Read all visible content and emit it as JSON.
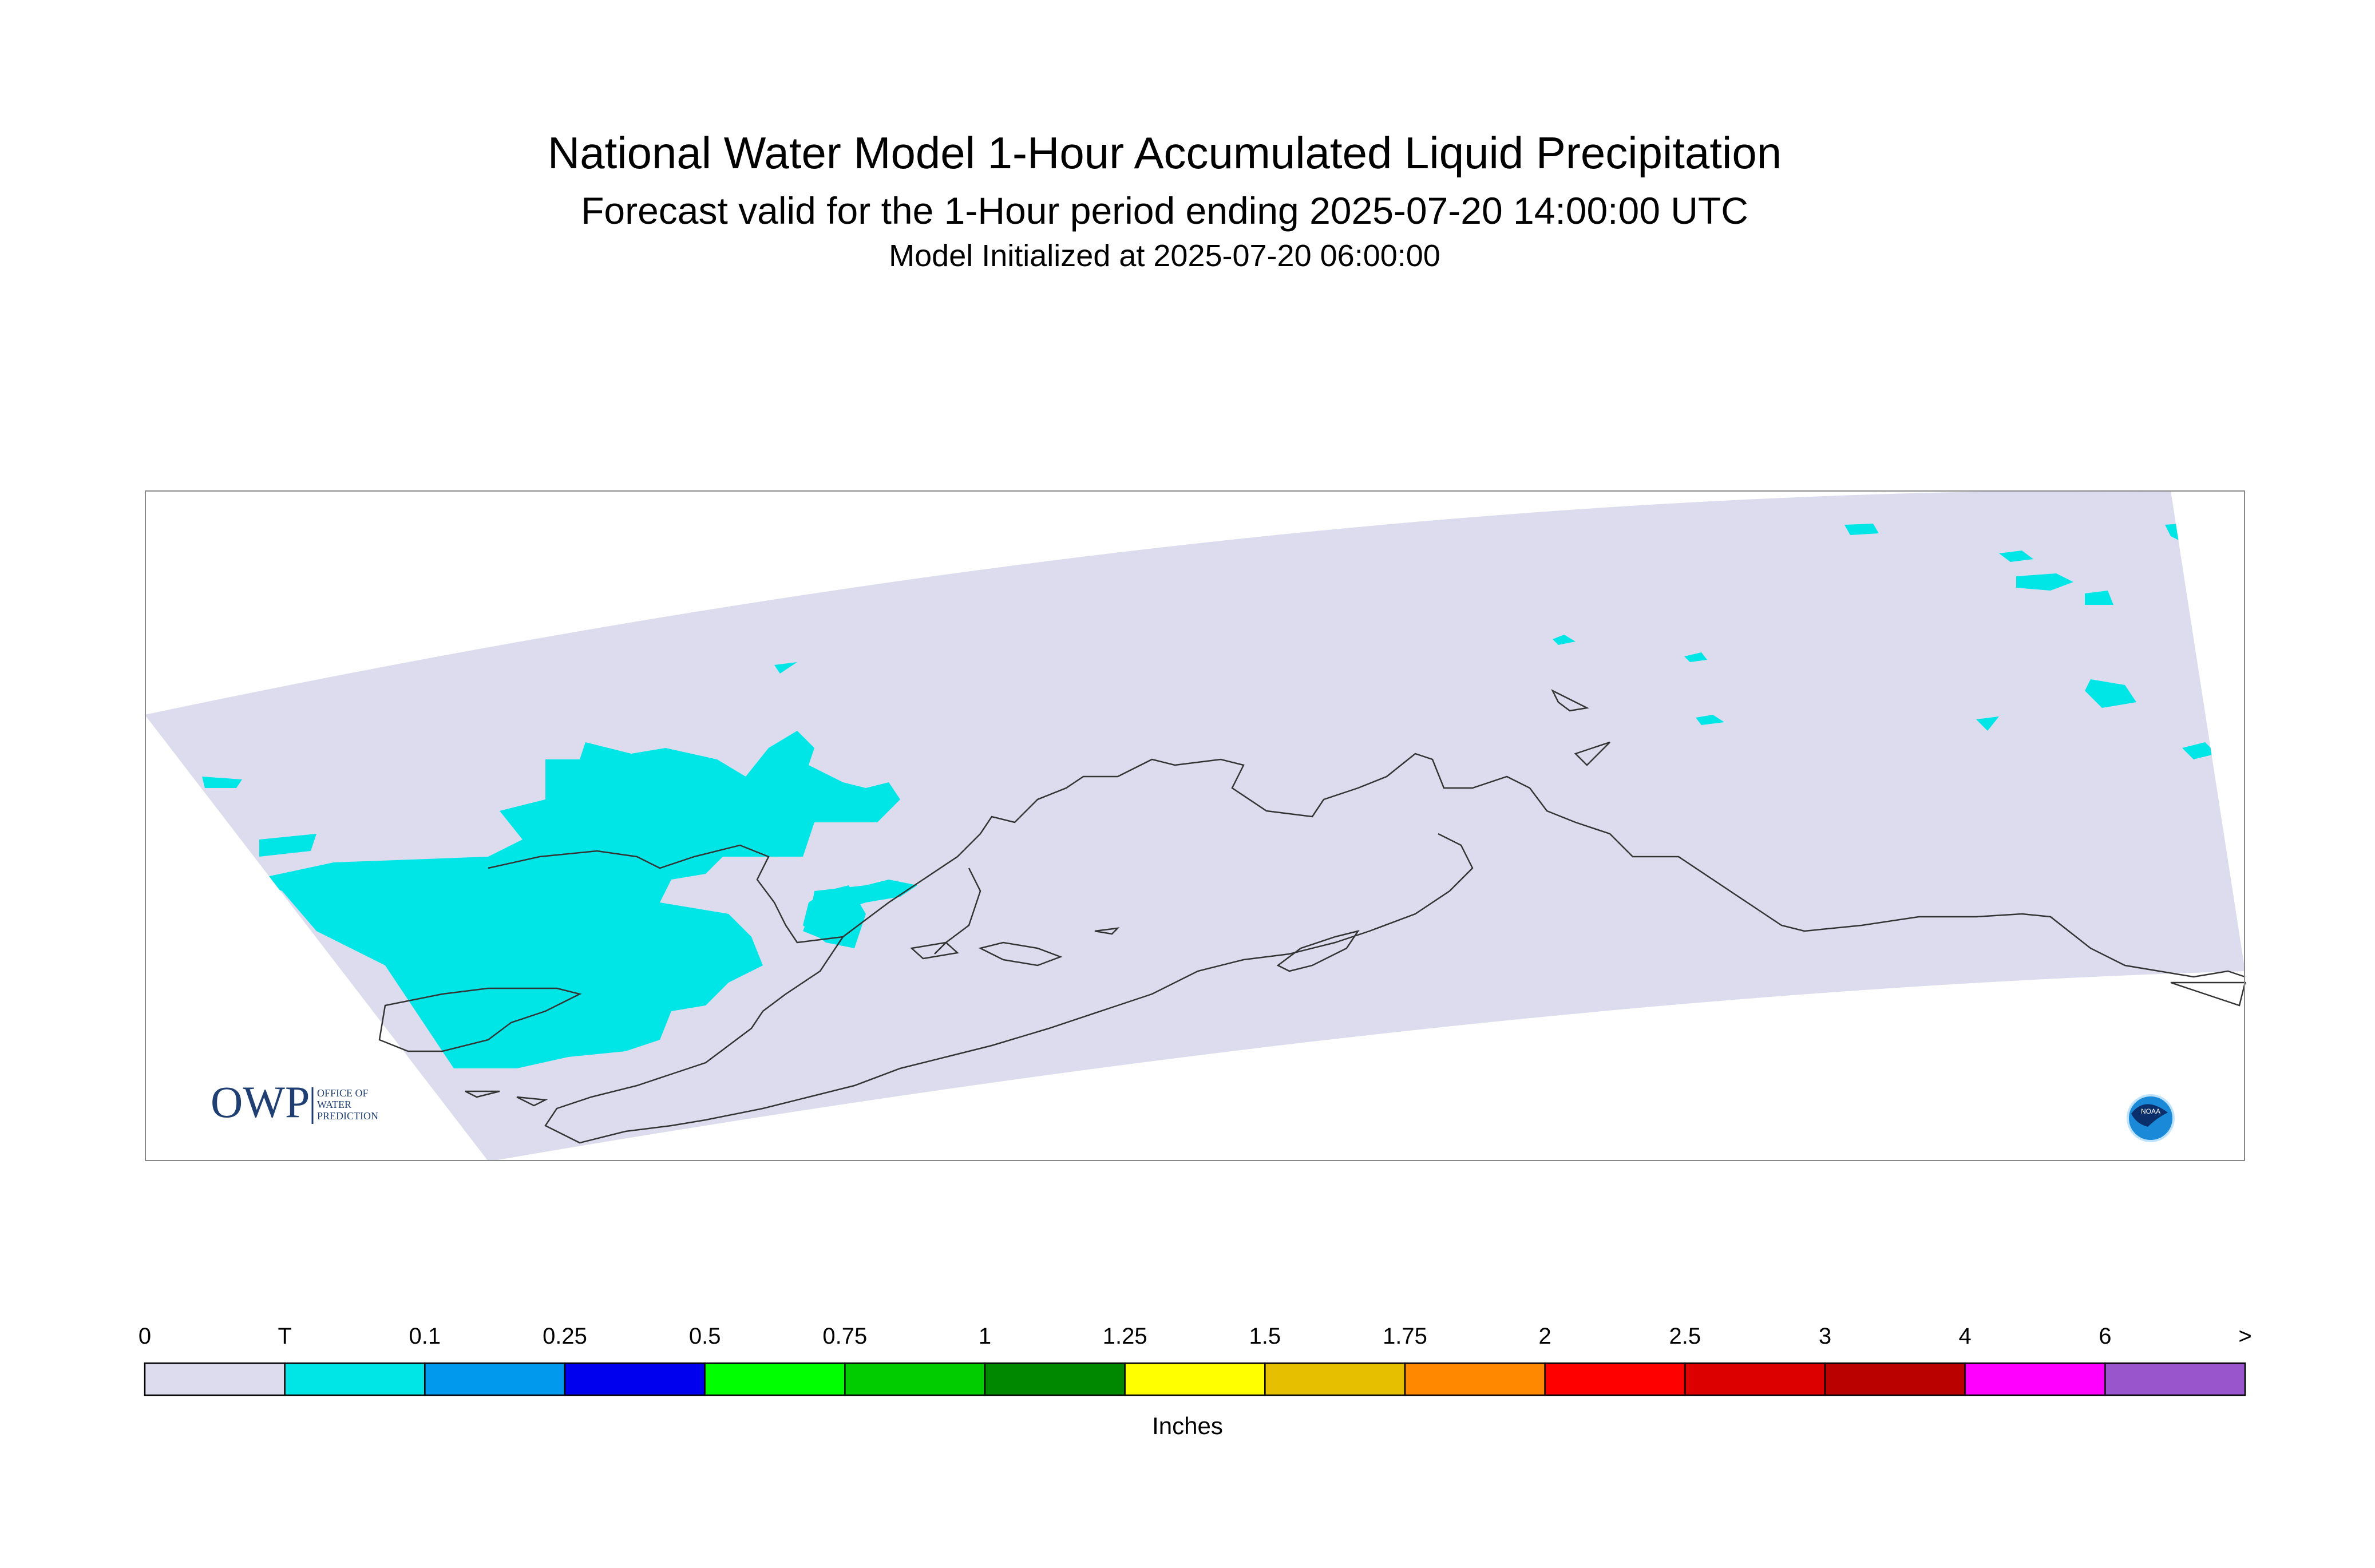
{
  "title": "National Water Model 1-Hour Accumulated Liquid Precipitation",
  "subtitle": "Forecast valid for the 1-Hour period ending 2025-07-20 14:00:00 UTC",
  "init_line": "Model Initialized at 2025-07-20 06:00:00",
  "units": "Inches",
  "logos": {
    "owp_text": "OWP",
    "owp_sub": [
      "OFFICE OF",
      "WATER",
      "PREDICTION"
    ],
    "noaa_text": "NOAA"
  },
  "colors": {
    "domain_fill": "#dcdcee",
    "precip_trace": "#00e6e6",
    "coastline": "#333333",
    "frame": "#888888"
  },
  "legend": {
    "labels": [
      "0",
      "T",
      "0.1",
      "0.25",
      "0.5",
      "0.75",
      "1",
      "1.25",
      "1.5",
      "1.75",
      "2",
      "2.5",
      "3",
      "4",
      "6",
      ">"
    ],
    "colors": [
      "#dcdcee",
      "#00e6e6",
      "#0099ee",
      "#0000ee",
      "#00ff00",
      "#00cc00",
      "#008800",
      "#ffff00",
      "#e6c000",
      "#ff8800",
      "#ff0000",
      "#dd0000",
      "#bb0000",
      "#ff00ff",
      "#9955cc"
    ]
  }
}
